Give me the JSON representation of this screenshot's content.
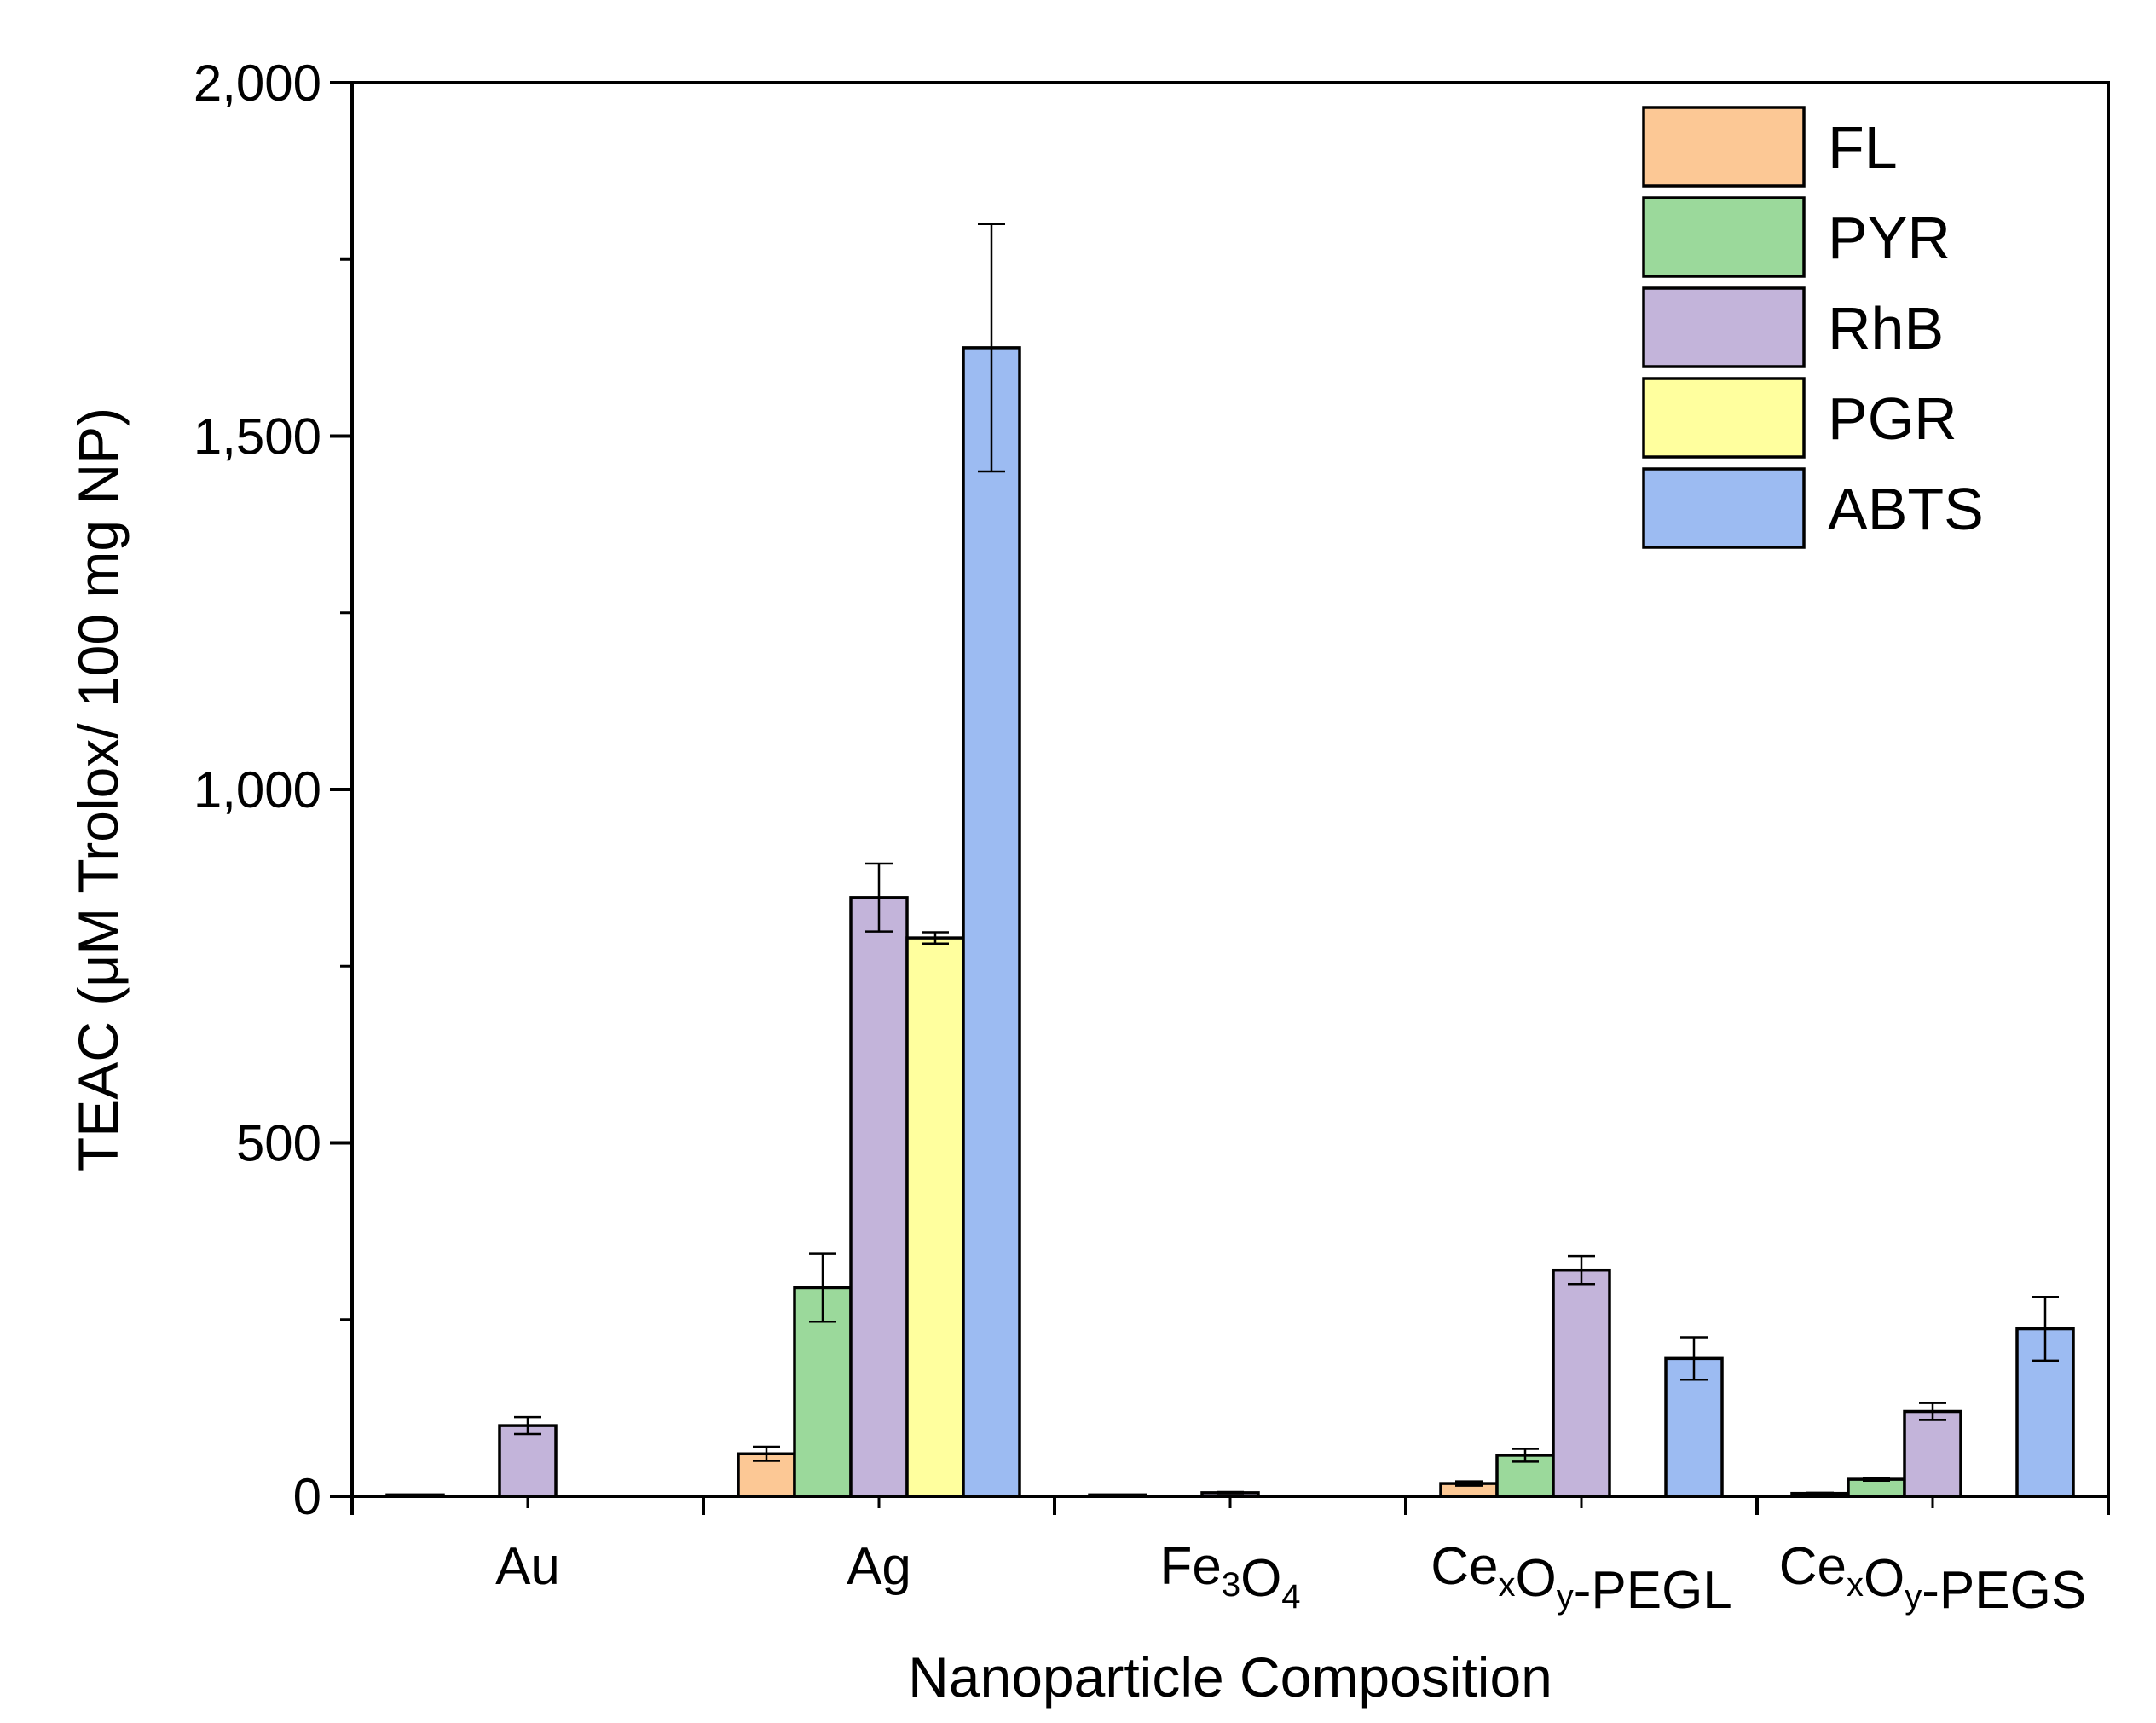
{
  "chart_data": {
    "type": "bar",
    "title": "",
    "xlabel": "Nanoparticle Composition",
    "ylabel": "TEAC (μM Trolox/ 100 mg NP)",
    "ylim": [
      0,
      2000
    ],
    "yticks": [
      0,
      500,
      1000,
      1500,
      2000
    ],
    "ytick_labels": [
      "0",
      "500",
      "1,000",
      "1,500",
      "2,000"
    ],
    "categories": [
      "Au",
      "Ag",
      "Fe3O4",
      "CexOy-PEGL",
      "CexOy-PEGS"
    ],
    "category_labels": [
      [
        {
          "t": "Au"
        }
      ],
      [
        {
          "t": "Ag"
        }
      ],
      [
        {
          "t": "Fe"
        },
        {
          "t": "3",
          "sub": true
        },
        {
          "t": "O"
        },
        {
          "t": "4",
          "sub": true
        }
      ],
      [
        {
          "t": "Ce"
        },
        {
          "t": "x",
          "sub": true
        },
        {
          "t": "O"
        },
        {
          "t": "y",
          "sub": true
        },
        {
          "t": "-PEGL"
        }
      ],
      [
        {
          "t": "Ce"
        },
        {
          "t": "x",
          "sub": true
        },
        {
          "t": "O"
        },
        {
          "t": "y",
          "sub": true
        },
        {
          "t": "-PEGS"
        }
      ]
    ],
    "series": [
      {
        "name": "FL",
        "color": "#fcc895",
        "values": [
          2,
          60,
          2,
          18,
          4
        ],
        "errors": [
          0,
          10,
          0,
          3,
          1
        ]
      },
      {
        "name": "PYR",
        "color": "#9bd99b",
        "values": [
          0,
          295,
          0,
          58,
          24
        ],
        "errors": [
          0,
          48,
          0,
          9,
          2
        ]
      },
      {
        "name": "RhB",
        "color": "#c3b4da",
        "values": [
          100,
          847,
          5,
          320,
          120
        ],
        "errors": [
          12,
          48,
          1,
          20,
          12
        ]
      },
      {
        "name": "PGR",
        "color": "#ffff9e",
        "values": [
          0,
          790,
          0,
          0,
          0
        ],
        "errors": [
          0,
          8,
          0,
          0,
          0
        ]
      },
      {
        "name": "ABTS",
        "color": "#9cbbf2",
        "values": [
          0,
          1625,
          0,
          195,
          237
        ],
        "errors": [
          0,
          175,
          0,
          30,
          45
        ]
      }
    ],
    "legend": {
      "position": "top-right"
    },
    "grid": false
  }
}
